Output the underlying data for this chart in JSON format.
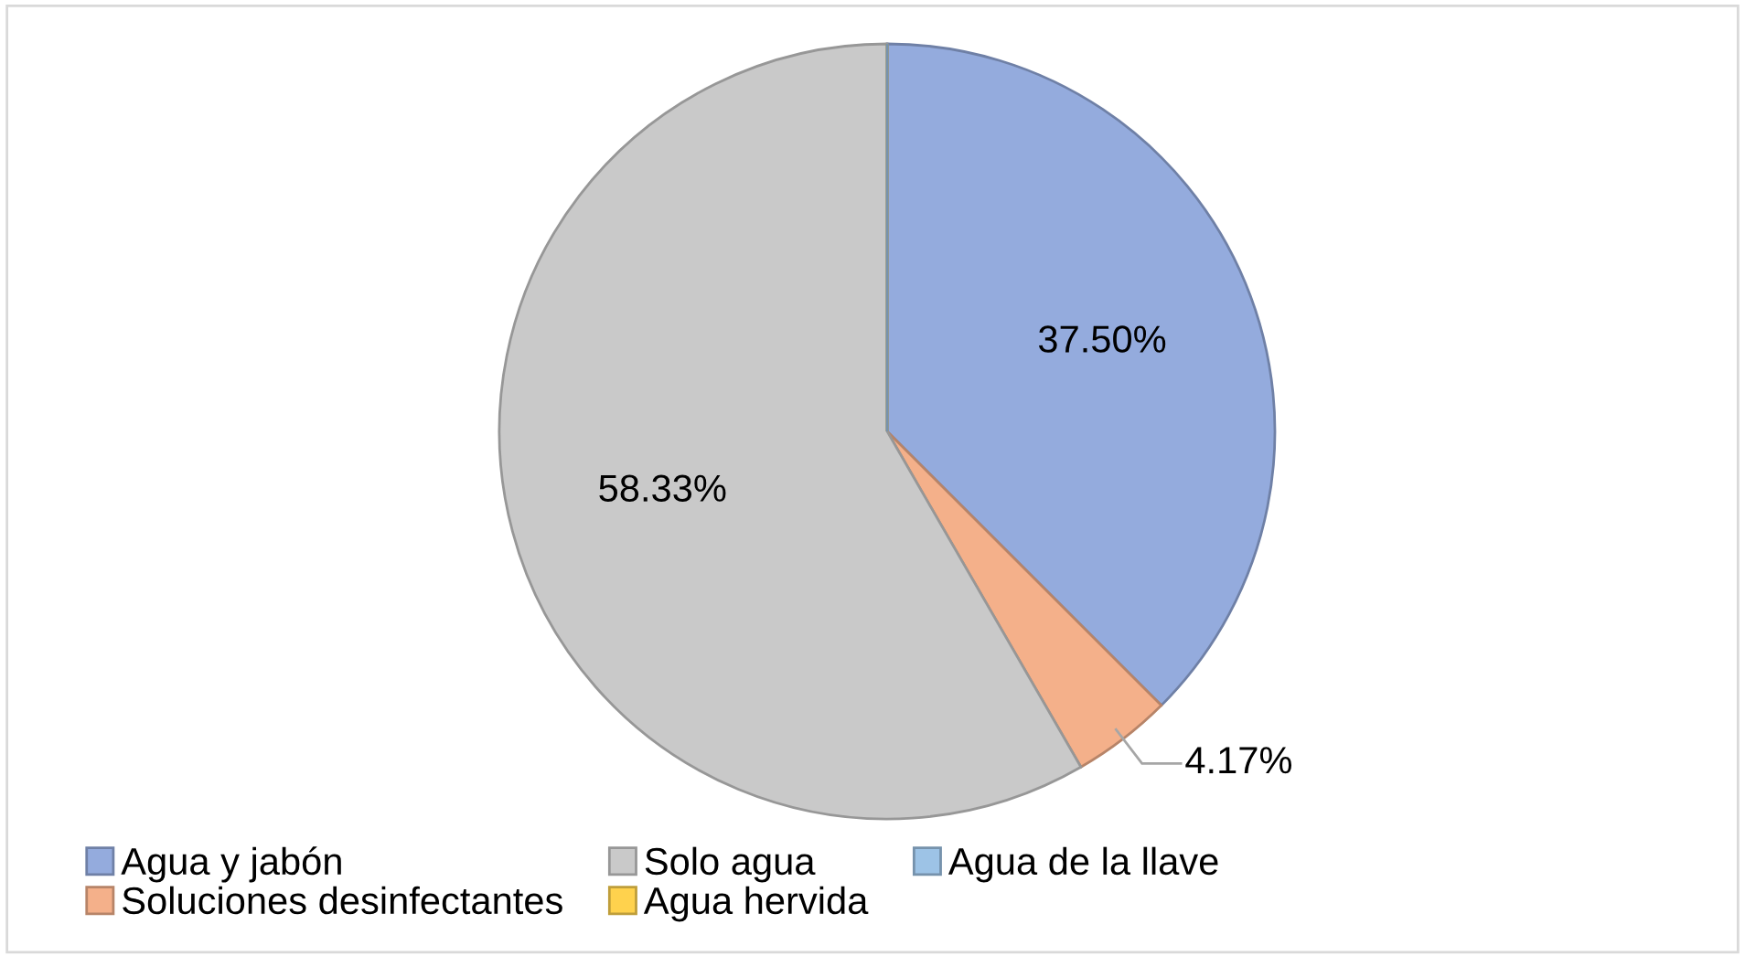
{
  "chart_data": {
    "type": "pie",
    "categories": [
      "Agua y jabón",
      "Soluciones desinfectantes",
      "Solo agua",
      "Agua hervida",
      "Agua de la llave"
    ],
    "values": [
      37.5,
      4.17,
      58.33,
      0,
      0
    ],
    "colors": [
      "#94abdd",
      "#f4b08a",
      "#c9c9c9",
      "#ffd24d",
      "#9dc3e6"
    ],
    "value_labels": [
      "37.50%",
      "4.17%",
      "58.33%",
      null,
      null
    ],
    "legend": "bottom"
  }
}
